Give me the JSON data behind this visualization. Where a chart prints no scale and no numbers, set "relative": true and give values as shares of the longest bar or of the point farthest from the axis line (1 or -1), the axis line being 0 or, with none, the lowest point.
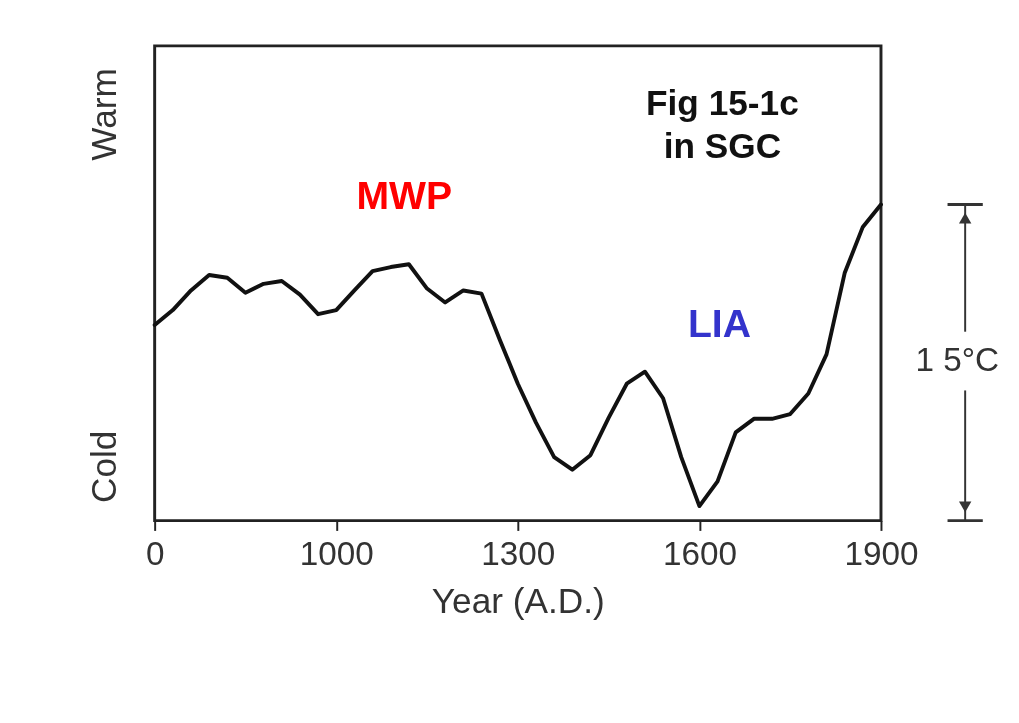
{
  "chart_data": {
    "type": "line",
    "relative": true,
    "xlabel": "Year (A.D.)",
    "categories": [
      "0",
      null,
      null,
      null,
      null,
      null,
      null,
      null,
      null,
      null,
      "1000",
      null,
      null,
      null,
      null,
      null,
      null,
      null,
      null,
      null,
      "1300",
      null,
      null,
      null,
      null,
      null,
      null,
      null,
      null,
      null,
      "1600",
      null,
      null,
      null,
      null,
      null,
      null,
      null,
      null,
      null,
      "1900"
    ],
    "series": [
      {
        "color": "#111111",
        "values": [
          0.619,
          0.666,
          0.728,
          0.777,
          0.768,
          0.721,
          0.749,
          0.758,
          0.715,
          0.653,
          0.666,
          0.728,
          0.789,
          0.802,
          0.811,
          0.734,
          0.69,
          0.728,
          0.718,
          0.573,
          0.433,
          0.31,
          0.201,
          0.161,
          0.207,
          0.325,
          0.433,
          0.471,
          0.387,
          0.201,
          0.046,
          0.124,
          0.279,
          0.322,
          0.322,
          0.337,
          0.402,
          0.526,
          0.783,
          0.929,
          1.0
        ]
      }
    ],
    "annotations": [
      "Warm",
      "Cold",
      "MWP",
      "LIA",
      "Fig 15-1c\nin SGC",
      "1 5°C"
    ],
    "grid": false,
    "marker": "none",
    "line_style": "solid"
  }
}
